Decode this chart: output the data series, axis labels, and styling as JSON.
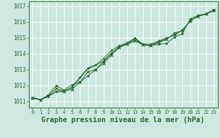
{
  "background_color": "#cce8e0",
  "grid_color": "#b0d8d0",
  "line_color": "#2d6a2d",
  "xlabel": "Graphe pression niveau de la mer (hPa)",
  "xlabel_fontsize": 7.5,
  "xlabel_color": "#2d6a2d",
  "xlim": [
    -0.5,
    23.5
  ],
  "ylim": [
    1010.6,
    1017.3
  ],
  "yticks": [
    1011,
    1012,
    1013,
    1014,
    1015,
    1016,
    1017
  ],
  "xticks": [
    0,
    1,
    2,
    3,
    4,
    5,
    6,
    7,
    8,
    9,
    10,
    11,
    12,
    13,
    14,
    15,
    16,
    17,
    18,
    19,
    20,
    21,
    22,
    23
  ],
  "series": [
    [
      1011.2,
      1011.1,
      1011.3,
      1011.6,
      1011.6,
      1011.9,
      1012.5,
      1013.1,
      1013.3,
      1013.7,
      1014.2,
      1014.5,
      1014.7,
      1014.95,
      1014.6,
      1014.6,
      1014.8,
      1015.0,
      1015.15,
      1015.5,
      1016.05,
      1016.4,
      1016.5,
      1016.75
    ],
    [
      1011.2,
      1011.1,
      1011.35,
      1011.8,
      1011.65,
      1011.75,
      1012.2,
      1012.85,
      1013.0,
      1013.4,
      1013.9,
      1014.4,
      1014.6,
      1014.8,
      1014.55,
      1014.5,
      1014.7,
      1014.9,
      1015.3,
      1015.45,
      1016.1,
      1016.35,
      1016.5,
      1016.72
    ],
    [
      1011.2,
      1011.1,
      1011.4,
      1012.0,
      1011.7,
      1012.05,
      1012.2,
      1012.6,
      1013.0,
      1013.5,
      1014.0,
      1014.45,
      1014.65,
      1015.0,
      1014.6,
      1014.5,
      1014.6,
      1014.65,
      1015.05,
      1015.25,
      1016.2,
      1016.42,
      1016.52,
      1016.78
    ],
    [
      1011.25,
      1011.1,
      1011.3,
      1011.65,
      1011.65,
      1011.85,
      1012.45,
      1013.05,
      1013.25,
      1013.55,
      1014.05,
      1014.42,
      1014.62,
      1014.88,
      1014.58,
      1014.55,
      1014.75,
      1014.95,
      1015.2,
      1015.48,
      1016.08,
      1016.38,
      1016.51,
      1016.73
    ]
  ],
  "markers": [
    "+",
    "x",
    ".",
    null
  ]
}
